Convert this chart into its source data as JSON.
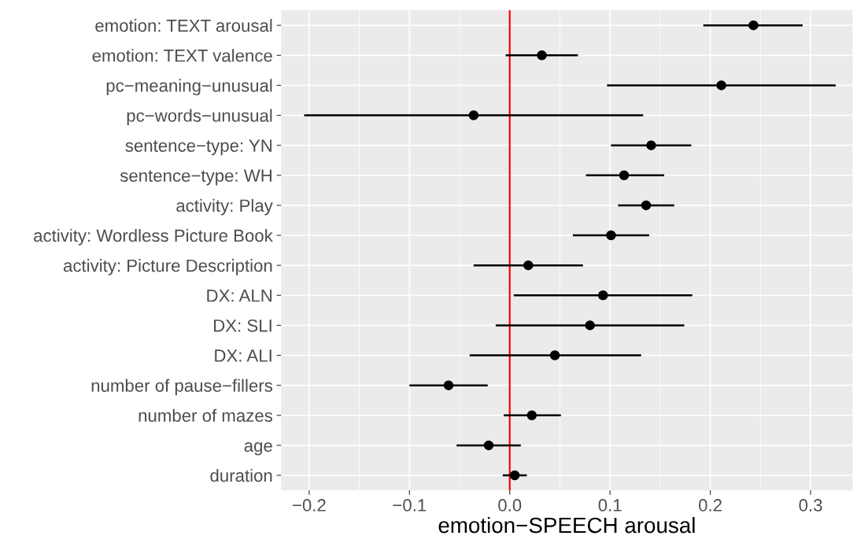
{
  "chart_data": {
    "type": "scatter",
    "orientation": "horizontal",
    "xlabel": "emotion−SPEECH arousal",
    "categories": [
      "emotion: TEXT arousal",
      "emotion: TEXT valence",
      "pc−meaning−unusual",
      "pc−words−unusual",
      "sentence−type: YN",
      "sentence−type: WH",
      "activity: Play",
      "activity: Wordless Picture Book",
      "activity: Picture Description",
      "DX: ALN",
      "DX: SLI",
      "DX: ALI",
      "number of pause−fillers",
      "number of mazes",
      "age",
      "duration"
    ],
    "values": [
      0.243,
      0.032,
      0.211,
      -0.036,
      0.141,
      0.114,
      0.136,
      0.101,
      0.0185,
      0.093,
      0.08,
      0.045,
      -0.061,
      0.022,
      -0.021,
      0.005
    ],
    "errors": [
      [
        0.193,
        0.292
      ],
      [
        -0.004,
        0.068
      ],
      [
        0.097,
        0.325
      ],
      [
        -0.205,
        0.133
      ],
      [
        0.101,
        0.181
      ],
      [
        0.076,
        0.154
      ],
      [
        0.108,
        0.164
      ],
      [
        0.063,
        0.139
      ],
      [
        -0.036,
        0.073
      ],
      [
        0.004,
        0.182
      ],
      [
        -0.014,
        0.174
      ],
      [
        -0.04,
        0.131
      ],
      [
        -0.1,
        -0.022
      ],
      [
        -0.006,
        0.051
      ],
      [
        -0.053,
        0.011
      ],
      [
        -0.007,
        0.017
      ]
    ],
    "color": "#000000",
    "marker": "circle",
    "xlim": [
      -0.228,
      0.342
    ],
    "xticks": [
      {
        "value": -0.2,
        "label": "−0.2"
      },
      {
        "value": -0.1,
        "label": "−0.1"
      },
      {
        "value": 0,
        "label": "0.0"
      },
      {
        "value": 0.1,
        "label": "0.1"
      },
      {
        "value": 0.2,
        "label": "0.2"
      },
      {
        "value": 0.3,
        "label": "0.3"
      }
    ],
    "ref_lines": [
      {
        "axis": "x",
        "value": 0,
        "color": "#ff0000",
        "line_style": "solid"
      }
    ],
    "grid": true
  }
}
